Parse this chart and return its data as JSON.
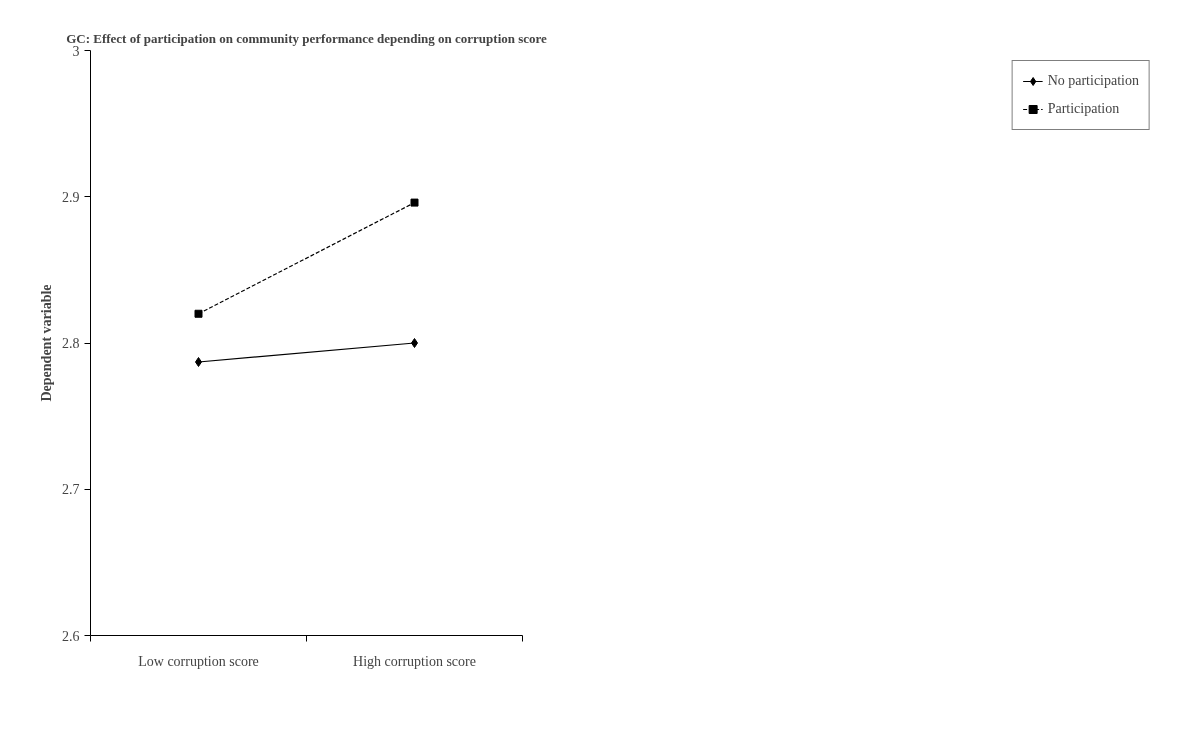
{
  "chart_data": {
    "type": "line",
    "title": "GC: Effect of participation on community performance depending on corruption score",
    "ylabel": "Dependent variable",
    "categories": [
      "Low corruption score",
      "High corruption score"
    ],
    "series": [
      {
        "name": "No participation",
        "color": "#000000",
        "values": [
          2.787,
          2.8
        ],
        "marker": "diamond",
        "line_style": "solid"
      },
      {
        "name": "Participation",
        "color": "#000000",
        "values": [
          2.82,
          2.896
        ],
        "marker": "square",
        "line_style": "dashed"
      }
    ],
    "ylim": [
      2.6,
      3
    ],
    "yticks": [
      2.6,
      2.7,
      2.8,
      2.9,
      3
    ],
    "grid": false,
    "legend": "right"
  }
}
